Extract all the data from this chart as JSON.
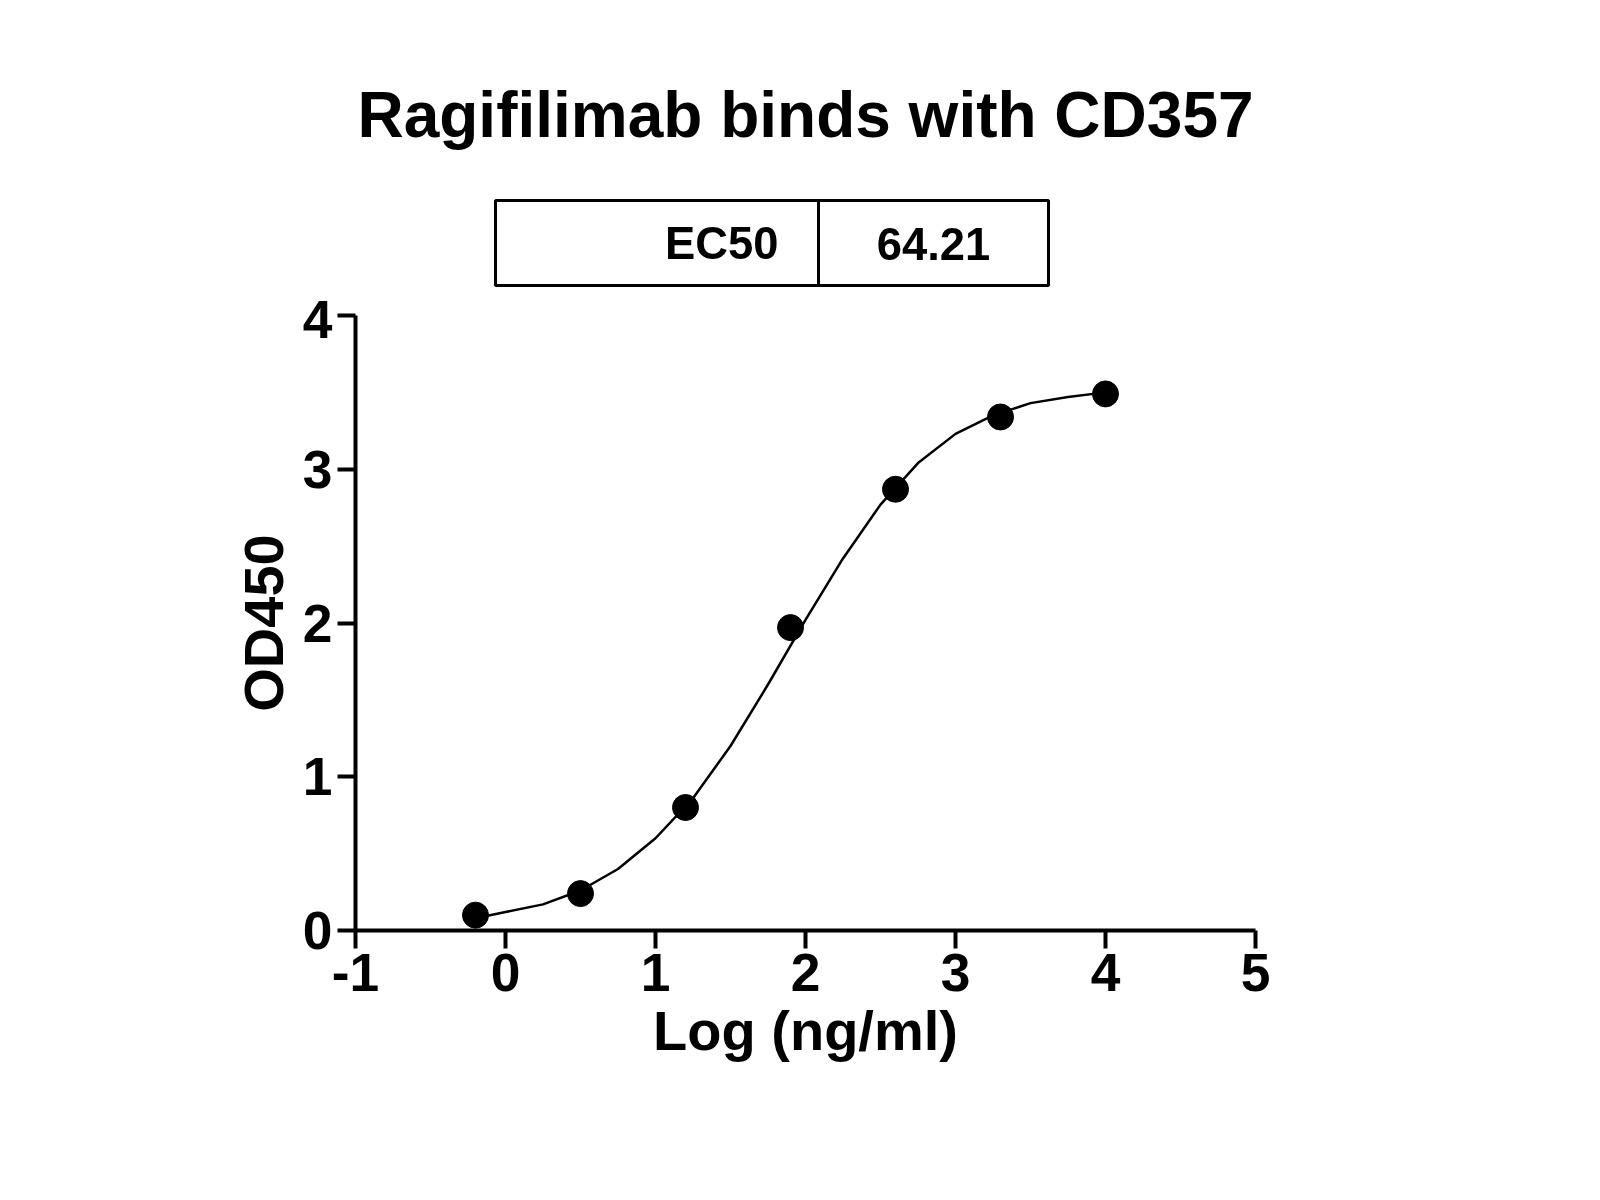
{
  "chart_data": {
    "type": "scatter",
    "title": "Ragifilimab binds with CD357",
    "xlabel": "Log (ng/ml)",
    "ylabel": "OD450",
    "annotations": [
      "EC50",
      "64.21"
    ],
    "x": [
      -0.2,
      0.5,
      1.2,
      1.9,
      2.6,
      3.3,
      4.0
    ],
    "series": [
      {
        "type": "scatter",
        "color": "#000000",
        "marker": "circle",
        "values": [
          0.1,
          0.24,
          0.8,
          1.97,
          2.87,
          3.34,
          3.49
        ]
      },
      {
        "type": "line",
        "color": "#000000",
        "line_style": "solid",
        "x": [
          -0.2,
          0,
          0.25,
          0.5,
          0.75,
          1.0,
          1.25,
          1.5,
          1.75,
          2.0,
          2.25,
          2.5,
          2.75,
          3.0,
          3.25,
          3.5,
          3.75,
          4.0
        ],
        "values": [
          0.08,
          0.12,
          0.17,
          0.26,
          0.4,
          0.6,
          0.86,
          1.2,
          1.6,
          2.02,
          2.42,
          2.77,
          3.04,
          3.23,
          3.35,
          3.43,
          3.47,
          3.5
        ]
      }
    ],
    "xlim": [
      -1,
      5
    ],
    "xticks": [
      -1,
      0,
      1,
      2,
      3,
      4,
      5
    ],
    "ylim": [
      0,
      4
    ],
    "yticks": [
      0,
      1,
      2,
      3,
      4
    ],
    "grid": false
  }
}
